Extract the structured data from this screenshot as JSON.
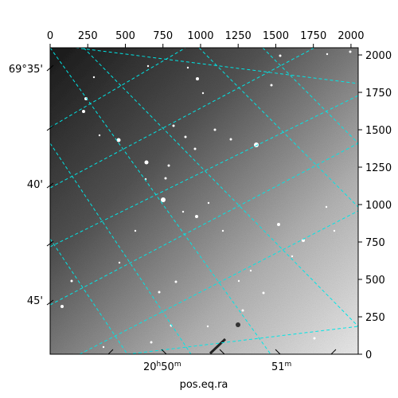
{
  "image": {
    "description_colors": {
      "grid": "#00e5e5",
      "frame": "#000000",
      "background": "#ffffff"
    }
  },
  "axes": {
    "xlabel": "pos.eq.ra",
    "top_ticks": [
      "0",
      "250",
      "500",
      "750",
      "1000",
      "1250",
      "1500",
      "1750",
      "2000"
    ],
    "right_ticks": [
      "0",
      "250",
      "500",
      "750",
      "1000",
      "1250",
      "1500",
      "1750",
      "2000"
    ],
    "ra_ticks": {
      "first_main": "20",
      "first_sup1": "h",
      "first_num": "50",
      "first_sup2": "m",
      "second_num": "51",
      "second_sup": "m"
    },
    "dec_ticks": [
      "69°35'",
      "40'",
      "45'"
    ]
  }
}
